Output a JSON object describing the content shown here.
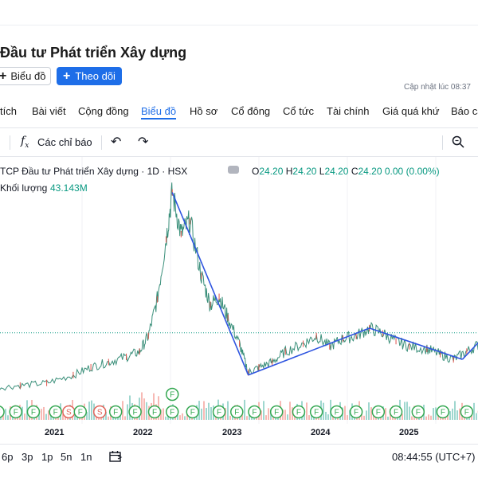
{
  "company": {
    "title": "Đầu tư Phát triển Xây dựng"
  },
  "actions": {
    "chart_label": "Biểu đồ",
    "follow_label": "Theo dõi"
  },
  "updated": {
    "text": "Cập nhật lúc  08:37"
  },
  "tabs": [
    {
      "label": "tích"
    },
    {
      "label": "Bài viết"
    },
    {
      "label": "Cộng đồng"
    },
    {
      "label": "Biểu đồ",
      "active": true
    },
    {
      "label": "Hồ sơ"
    },
    {
      "label": "Cổ đông"
    },
    {
      "label": "Cổ tức"
    },
    {
      "label": "Tài chính"
    },
    {
      "label": "Giá quá khứ"
    },
    {
      "label": "Báo cá"
    }
  ],
  "toolbar": {
    "fx_icon": "fx-icon",
    "indicators_label": "Các chỉ báo",
    "undo_icon": "undo-icon",
    "redo_icon": "redo-icon",
    "search_icon": "magnifier-icon"
  },
  "legend": {
    "title": "TCP Đầu tư Phát triển Xây dựng · 1D · HSX",
    "open_key": "O",
    "open": "24.20",
    "high_key": "H",
    "high": "24.20",
    "low_key": "L",
    "low": "24.20",
    "close_key": "C",
    "close": "24.20",
    "change": "0.00 (0.00%)",
    "volume_label": "Khối lượng",
    "volume_value": "43.143M"
  },
  "chart_data": {
    "type": "line",
    "x_ticks": [
      "2021",
      "2022",
      "2023",
      "2024",
      "2025"
    ],
    "price_series": [
      {
        "t": 2020.0,
        "y": 3
      },
      {
        "t": 2020.3,
        "y": 4
      },
      {
        "t": 2020.6,
        "y": 5
      },
      {
        "t": 2020.9,
        "y": 8
      },
      {
        "t": 2021.1,
        "y": 11
      },
      {
        "t": 2021.3,
        "y": 13
      },
      {
        "t": 2021.5,
        "y": 15
      },
      {
        "t": 2021.65,
        "y": 17
      },
      {
        "t": 2021.75,
        "y": 23
      },
      {
        "t": 2021.85,
        "y": 37
      },
      {
        "t": 2021.95,
        "y": 60
      },
      {
        "t": 2022.02,
        "y": 78
      },
      {
        "t": 2022.12,
        "y": 62
      },
      {
        "t": 2022.22,
        "y": 67
      },
      {
        "t": 2022.35,
        "y": 46
      },
      {
        "t": 2022.45,
        "y": 35
      },
      {
        "t": 2022.55,
        "y": 38
      },
      {
        "t": 2022.65,
        "y": 30
      },
      {
        "t": 2022.78,
        "y": 20
      },
      {
        "t": 2022.88,
        "y": 9
      },
      {
        "t": 2023.0,
        "y": 11
      },
      {
        "t": 2023.15,
        "y": 13
      },
      {
        "t": 2023.3,
        "y": 17
      },
      {
        "t": 2023.5,
        "y": 20
      },
      {
        "t": 2023.65,
        "y": 23
      },
      {
        "t": 2023.8,
        "y": 19
      },
      {
        "t": 2023.95,
        "y": 22
      },
      {
        "t": 2024.1,
        "y": 23
      },
      {
        "t": 2024.25,
        "y": 26
      },
      {
        "t": 2024.4,
        "y": 24
      },
      {
        "t": 2024.55,
        "y": 21
      },
      {
        "t": 2024.7,
        "y": 19
      },
      {
        "t": 2024.9,
        "y": 18
      },
      {
        "t": 2025.05,
        "y": 16
      },
      {
        "t": 2025.2,
        "y": 14
      },
      {
        "t": 2025.35,
        "y": 17
      },
      {
        "t": 2025.5,
        "y": 20
      },
      {
        "t": 2025.6,
        "y": 24
      }
    ],
    "trend_lines": [
      [
        {
          "t": 2022.02,
          "y": 78
        },
        {
          "t": 2022.88,
          "y": 8
        }
      ],
      [
        {
          "t": 2022.88,
          "y": 8
        },
        {
          "t": 2024.25,
          "y": 26
        }
      ],
      [
        {
          "t": 2024.25,
          "y": 26
        },
        {
          "t": 2025.3,
          "y": 14
        }
      ],
      [
        {
          "t": 2025.3,
          "y": 14
        },
        {
          "t": 2025.75,
          "y": 30
        }
      ]
    ],
    "last_price": 24.2,
    "events": [
      {
        "t": 2020.05,
        "label": "F"
      },
      {
        "t": 2020.25,
        "label": "F"
      },
      {
        "t": 2020.45,
        "label": "F"
      },
      {
        "t": 2020.7,
        "label": "F"
      },
      {
        "t": 2020.85,
        "label": "S"
      },
      {
        "t": 2020.98,
        "label": "F"
      },
      {
        "t": 2021.2,
        "label": "S"
      },
      {
        "t": 2021.38,
        "label": "F"
      },
      {
        "t": 2021.6,
        "label": "F"
      },
      {
        "t": 2021.82,
        "label": "F"
      },
      {
        "t": 2022.02,
        "label": "F"
      },
      {
        "t": 2022.02,
        "label": "F",
        "row": 2
      },
      {
        "t": 2022.25,
        "label": "F"
      },
      {
        "t": 2022.55,
        "label": "F"
      },
      {
        "t": 2022.75,
        "label": "F"
      },
      {
        "t": 2022.95,
        "label": "F"
      },
      {
        "t": 2023.2,
        "label": "F"
      },
      {
        "t": 2023.45,
        "label": "F"
      },
      {
        "t": 2023.65,
        "label": "F"
      },
      {
        "t": 2023.88,
        "label": "F"
      },
      {
        "t": 2024.1,
        "label": "F"
      },
      {
        "t": 2024.35,
        "label": "F"
      },
      {
        "t": 2024.55,
        "label": "F"
      },
      {
        "t": 2024.8,
        "label": "F"
      },
      {
        "t": 2025.08,
        "label": "F"
      },
      {
        "t": 2025.35,
        "label": "F"
      },
      {
        "t": 2025.55,
        "label": "S"
      },
      {
        "t": 2025.68,
        "label": "F"
      }
    ]
  },
  "footer": {
    "ranges": [
      "6p",
      "3p",
      "1p",
      "5n",
      "1n"
    ],
    "calendar_icon": "calendar-icon",
    "clock": "08:44:55 (UTC+7)"
  }
}
